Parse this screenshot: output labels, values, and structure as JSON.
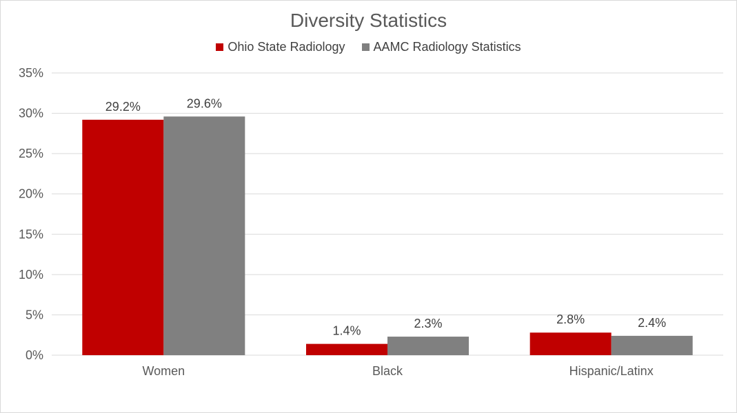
{
  "chart_data": {
    "type": "bar",
    "title": "Diversity Statistics",
    "categories": [
      "Women",
      "Black",
      "Hispanic/Latinx"
    ],
    "series": [
      {
        "name": "Ohio State Radiology",
        "color": "#c00000",
        "values": [
          29.2,
          1.4,
          2.8
        ],
        "labels": [
          "29.2%",
          "1.4%",
          "2.8%"
        ]
      },
      {
        "name": "AAMC Radiology Statistics",
        "color": "#808080",
        "values": [
          29.6,
          2.3,
          2.4
        ],
        "labels": [
          "29.6%",
          "2.3%",
          "2.4%"
        ]
      }
    ],
    "ylim": [
      0,
      35
    ],
    "yticks": [
      0,
      5,
      10,
      15,
      20,
      25,
      30,
      35
    ],
    "ytick_labels": [
      "0%",
      "5%",
      "10%",
      "15%",
      "20%",
      "25%",
      "30%",
      "35%"
    ],
    "grid": true,
    "legend_position": "top"
  }
}
